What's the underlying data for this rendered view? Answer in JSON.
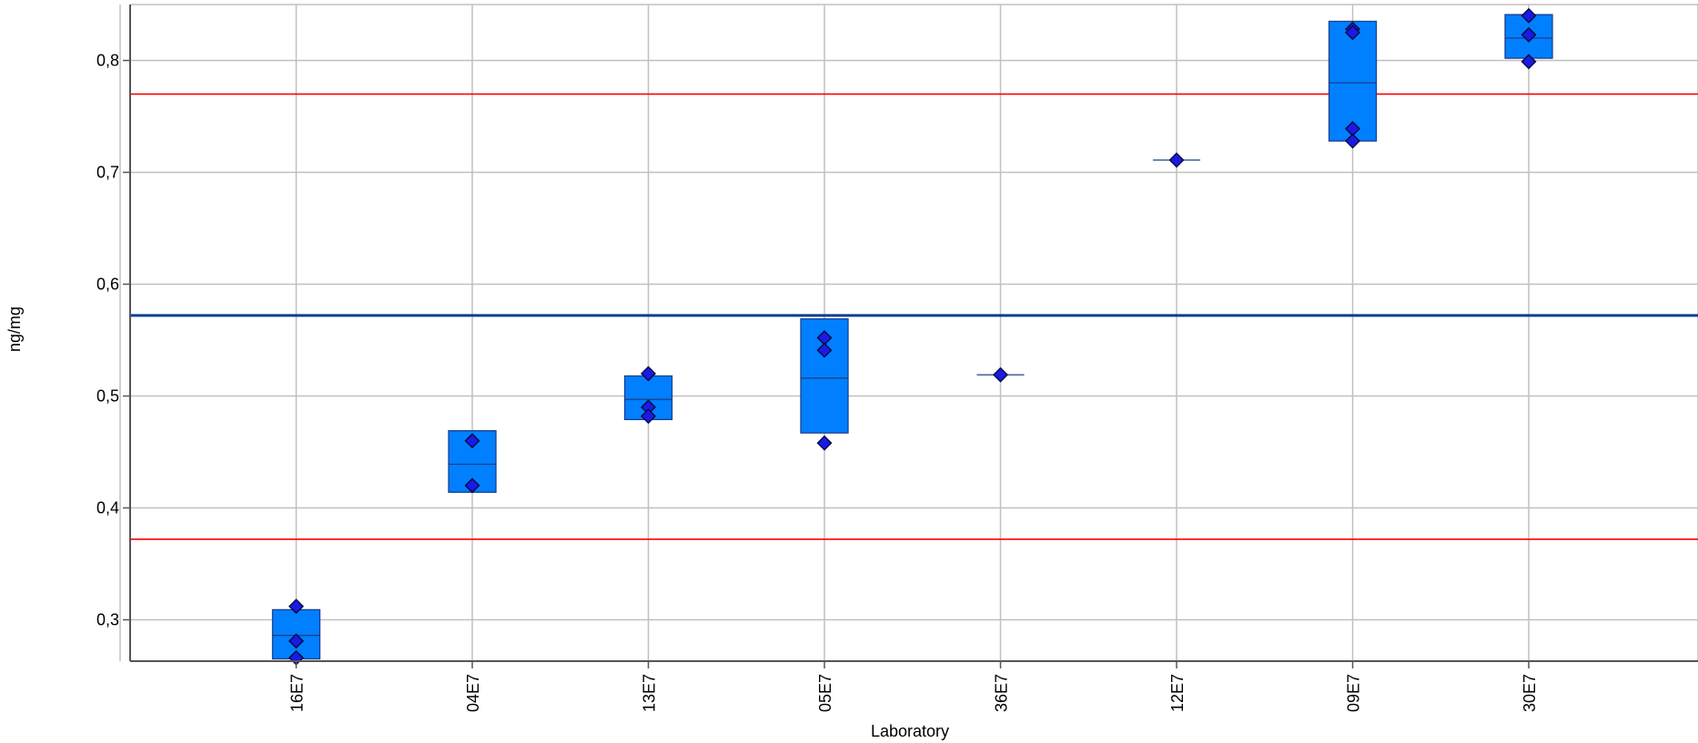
{
  "chart_data": {
    "type": "box",
    "xlabel": "Laboratory",
    "ylabel": "ng/mg",
    "ylim": [
      0.263,
      0.85
    ],
    "yticks": [
      0.3,
      0.4,
      0.5,
      0.6,
      0.7,
      0.8
    ],
    "ytick_labels": [
      "0,3",
      "0,4",
      "0,5",
      "0,6",
      "0,7",
      "0,8"
    ],
    "grid": true,
    "reference_lines": [
      {
        "value": 0.572,
        "color": "#0a3d91",
        "kind": "assigned value"
      },
      {
        "value": 0.77,
        "color": "#ff0000",
        "kind": "upper limit"
      },
      {
        "value": 0.372,
        "color": "#ff0000",
        "kind": "lower limit"
      }
    ],
    "categories": [
      "16E7",
      "04E7",
      "13E7",
      "05E7",
      "36E7",
      "12E7",
      "09E7",
      "30E7"
    ],
    "boxes": [
      {
        "lab": "16E7",
        "low": 0.265,
        "high": 0.309,
        "median": 0.286,
        "points": [
          0.312,
          0.281,
          0.266
        ]
      },
      {
        "lab": "04E7",
        "low": 0.414,
        "high": 0.469,
        "median": 0.439,
        "points": [
          0.46,
          0.42
        ]
      },
      {
        "lab": "13E7",
        "low": 0.479,
        "high": 0.518,
        "median": 0.497,
        "points": [
          0.52,
          0.49,
          0.482
        ]
      },
      {
        "lab": "05E7",
        "low": 0.467,
        "high": 0.569,
        "median": 0.516,
        "points": [
          0.552,
          0.541,
          0.458
        ]
      },
      {
        "lab": "36E7",
        "low": 0.519,
        "high": 0.519,
        "median": 0.519,
        "points": [
          0.519
        ]
      },
      {
        "lab": "12E7",
        "low": 0.711,
        "high": 0.711,
        "median": 0.711,
        "points": [
          0.711
        ]
      },
      {
        "lab": "09E7",
        "low": 0.728,
        "high": 0.835,
        "median": 0.78,
        "points": [
          0.828,
          0.825,
          0.739,
          0.728
        ]
      },
      {
        "lab": "30E7",
        "low": 0.802,
        "high": 0.841,
        "median": 0.82,
        "points": [
          0.84,
          0.823,
          0.799
        ]
      }
    ],
    "colors": {
      "box_fill": "#0080ff",
      "box_stroke": "#1c3f8a",
      "marker_fill": "#1a1ae6",
      "marker_stroke": "#0a0a40",
      "grid": "#c0c0c0",
      "axis": "#555555"
    }
  }
}
